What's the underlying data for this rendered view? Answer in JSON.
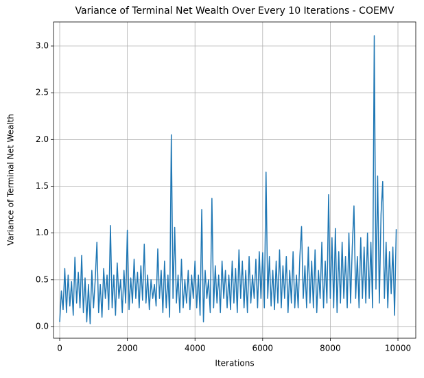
{
  "chart_data": {
    "type": "line",
    "title": "Variance of Terminal Net Wealth Over Every 10 Iterations - COEMV",
    "x_label": "Iterations",
    "y_label": "Variance of Terminal Net Wealth",
    "x": [
      0,
      50,
      100,
      150,
      200,
      250,
      300,
      350,
      400,
      450,
      500,
      550,
      600,
      650,
      700,
      750,
      800,
      850,
      900,
      950,
      1000,
      1050,
      1100,
      1150,
      1200,
      1250,
      1300,
      1350,
      1400,
      1450,
      1500,
      1550,
      1600,
      1650,
      1700,
      1750,
      1800,
      1850,
      1900,
      1950,
      2000,
      2050,
      2100,
      2150,
      2200,
      2250,
      2300,
      2350,
      2400,
      2450,
      2500,
      2550,
      2600,
      2650,
      2700,
      2750,
      2800,
      2850,
      2900,
      2950,
      3000,
      3050,
      3100,
      3150,
      3200,
      3250,
      3300,
      3350,
      3400,
      3450,
      3500,
      3550,
      3600,
      3650,
      3700,
      3750,
      3800,
      3850,
      3900,
      3950,
      4000,
      4050,
      4100,
      4150,
      4200,
      4250,
      4300,
      4350,
      4400,
      4450,
      4500,
      4550,
      4600,
      4650,
      4700,
      4750,
      4800,
      4850,
      4900,
      4950,
      5000,
      5050,
      5100,
      5150,
      5200,
      5250,
      5300,
      5350,
      5400,
      5450,
      5500,
      5550,
      5600,
      5650,
      5700,
      5750,
      5800,
      5850,
      5900,
      5950,
      6000,
      6050,
      6100,
      6150,
      6200,
      6250,
      6300,
      6350,
      6400,
      6450,
      6500,
      6550,
      6600,
      6650,
      6700,
      6750,
      6800,
      6850,
      6900,
      6950,
      7000,
      7050,
      7100,
      7150,
      7200,
      7250,
      7300,
      7350,
      7400,
      7450,
      7500,
      7550,
      7600,
      7650,
      7700,
      7750,
      7800,
      7850,
      7900,
      7950,
      8000,
      8050,
      8100,
      8150,
      8200,
      8250,
      8300,
      8350,
      8400,
      8450,
      8500,
      8550,
      8600,
      8650,
      8700,
      8750,
      8800,
      8850,
      8900,
      8950,
      9000,
      9050,
      9100,
      9150,
      9200,
      9250,
      9300,
      9350,
      9400,
      9450,
      9500,
      9550,
      9600,
      9650,
      9700,
      9750,
      9800,
      9850,
      9900,
      9950
    ],
    "series": [
      {
        "name": "Variance",
        "color": "#1f77b4",
        "values": [
          0.05,
          0.38,
          0.18,
          0.62,
          0.15,
          0.55,
          0.22,
          0.48,
          0.12,
          0.74,
          0.25,
          0.58,
          0.2,
          0.76,
          0.15,
          0.52,
          0.05,
          0.45,
          0.03,
          0.6,
          0.2,
          0.5,
          0.9,
          0.15,
          0.45,
          0.1,
          0.62,
          0.3,
          0.55,
          0.18,
          1.08,
          0.2,
          0.55,
          0.12,
          0.68,
          0.3,
          0.5,
          0.15,
          0.6,
          0.25,
          1.03,
          0.18,
          0.52,
          0.25,
          0.72,
          0.3,
          0.58,
          0.2,
          0.65,
          0.28,
          0.88,
          0.25,
          0.55,
          0.18,
          0.5,
          0.3,
          0.45,
          0.22,
          0.83,
          0.3,
          0.6,
          0.15,
          0.7,
          0.2,
          0.55,
          0.1,
          2.05,
          0.3,
          1.06,
          0.25,
          0.55,
          0.15,
          0.72,
          0.2,
          0.5,
          0.25,
          0.6,
          0.18,
          0.55,
          0.3,
          0.7,
          0.2,
          0.55,
          0.12,
          1.25,
          0.05,
          0.6,
          0.3,
          0.5,
          0.15,
          1.37,
          0.2,
          0.65,
          0.25,
          0.55,
          0.15,
          0.7,
          0.3,
          0.6,
          0.2,
          0.55,
          0.18,
          0.7,
          0.25,
          0.62,
          0.15,
          0.82,
          0.3,
          0.7,
          0.2,
          0.6,
          0.15,
          0.75,
          0.25,
          0.55,
          0.3,
          0.72,
          0.2,
          0.8,
          0.3,
          0.79,
          0.2,
          1.65,
          0.3,
          0.75,
          0.22,
          0.6,
          0.18,
          0.7,
          0.25,
          0.82,
          0.2,
          0.65,
          0.3,
          0.75,
          0.15,
          0.6,
          0.25,
          0.8,
          0.2,
          0.55,
          0.2,
          0.75,
          1.07,
          0.3,
          0.65,
          0.2,
          0.85,
          0.25,
          0.7,
          0.2,
          0.82,
          0.15,
          0.6,
          0.3,
          0.9,
          0.2,
          0.7,
          0.25,
          1.41,
          0.3,
          0.95,
          0.2,
          1.05,
          0.15,
          0.8,
          0.25,
          0.9,
          0.3,
          0.75,
          0.2,
          1.0,
          0.25,
          0.85,
          1.29,
          0.3,
          0.75,
          0.2,
          0.95,
          0.3,
          0.85,
          0.25,
          1.0,
          0.3,
          0.9,
          0.2,
          3.11,
          0.4,
          1.61,
          0.25,
          1.2,
          1.55,
          0.3,
          0.9,
          0.2,
          0.8,
          0.35,
          0.85,
          0.12,
          1.04
        ]
      }
    ],
    "xlim": [
      -183,
      10527
    ],
    "ylim": [
      -0.125,
      3.257
    ],
    "xticks": [
      0,
      2000,
      4000,
      6000,
      8000,
      10000
    ],
    "yticks": [
      {
        "value": 0,
        "label": "0.0"
      },
      {
        "value": 0.5,
        "label": "0.5"
      },
      {
        "value": 1,
        "label": "1.0"
      },
      {
        "value": 1.5,
        "label": "1.5"
      },
      {
        "value": 2,
        "label": "2.0"
      },
      {
        "value": 2.5,
        "label": "2.5"
      },
      {
        "value": 3,
        "label": "3.0"
      }
    ],
    "grid": true
  }
}
